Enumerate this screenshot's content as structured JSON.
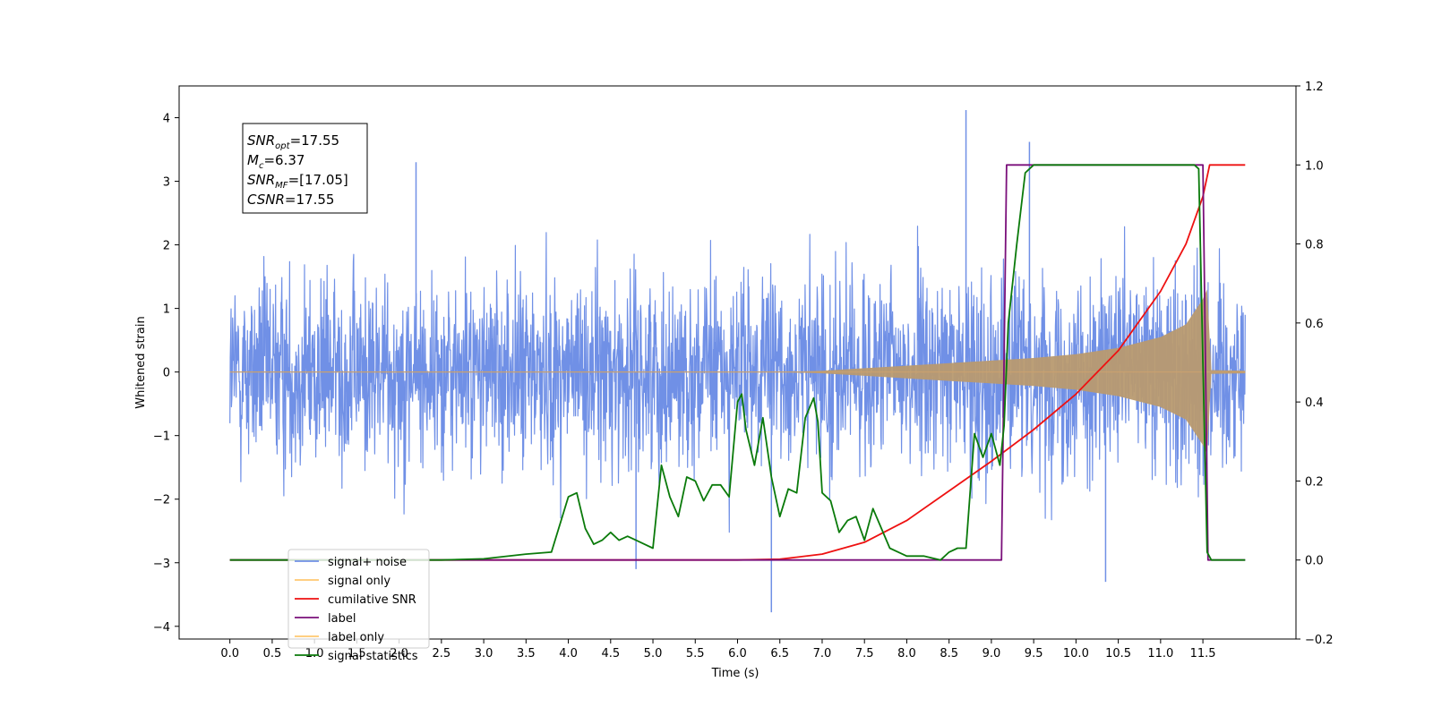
{
  "chart_data": {
    "type": "line",
    "xlabel": "Time (s)",
    "ylabel": "Whitened strain",
    "xlim": [
      -0.6,
      12.6
    ],
    "ylim": [
      -4.2,
      4.5
    ],
    "y2lim": [
      -0.2,
      1.2
    ],
    "x_ticks": [
      0.0,
      0.5,
      1.0,
      1.5,
      2.0,
      2.5,
      3.0,
      3.5,
      4.0,
      4.5,
      5.0,
      5.5,
      6.0,
      6.5,
      7.0,
      7.5,
      8.0,
      8.5,
      9.0,
      9.5,
      10.0,
      10.5,
      11.0,
      11.5
    ],
    "x_tick_labels": [
      "0.0",
      "0.5",
      "1.0",
      "1.5",
      "2.0",
      "2.5",
      "3.0",
      "3.5",
      "4.0",
      "4.5",
      "5.0",
      "5.5",
      "6.0",
      "6.5",
      "7.0",
      "7.5",
      "8.0",
      "8.5",
      "9.0",
      "9.5",
      "10.0",
      "10.5",
      "11.0",
      "11.5"
    ],
    "y_ticks": [
      -4,
      -3,
      -2,
      -1,
      0,
      1,
      2,
      3,
      4
    ],
    "y_tick_labels": [
      "−4",
      "−3",
      "−2",
      "−1",
      "0",
      "1",
      "2",
      "3",
      "4"
    ],
    "y2_ticks": [
      -0.2,
      0.0,
      0.2,
      0.4,
      0.6,
      0.8,
      1.0,
      1.2
    ],
    "y2_tick_labels": [
      "−0.2",
      "0.0",
      "0.2",
      "0.4",
      "0.6",
      "0.8",
      "1.0",
      "1.2"
    ],
    "annotation": {
      "lines": [
        {
          "base": "SNR",
          "sub": "opt",
          "rest": "=17.55"
        },
        {
          "base": "M",
          "sub": "c",
          "rest": "=6.37"
        },
        {
          "base": "SNR",
          "sub": "MF",
          "rest": "=[17.05]"
        },
        {
          "base": "CSNR",
          "sub": "",
          "rest": "=17.55"
        }
      ]
    },
    "legend": {
      "location": "lower-left",
      "entries": [
        {
          "label": "signal+ noise",
          "color": "#7090e6"
        },
        {
          "label": "signal only",
          "color": "#ffc870"
        },
        {
          "label": "cumilative SNR",
          "color": "#ee1111"
        },
        {
          "label": "label",
          "color": "#7a0f7a"
        },
        {
          "label": "label only",
          "color": "#ffc870"
        },
        {
          "label": "signal statistics",
          "color": "#0a7a0a"
        }
      ]
    },
    "series": [
      {
        "name": "signal+ noise",
        "axis": "left",
        "color": "#7090e6",
        "x_range": [
          0.0,
          12.0
        ],
        "typical_range": [
          -1.8,
          2.0
        ],
        "notable_peaks": [
          [
            8.7,
            4.12
          ],
          [
            6.4,
            -3.78
          ],
          [
            9.45,
            3.62
          ],
          [
            10.35,
            -3.3
          ],
          [
            4.8,
            -3.1
          ],
          [
            2.2,
            3.3
          ]
        ]
      },
      {
        "name": "signal only",
        "axis": "left",
        "color": "#c8a070",
        "x": [
          0.0,
          6.5,
          7.0,
          7.5,
          8.0,
          8.5,
          9.0,
          9.5,
          10.0,
          10.5,
          11.0,
          11.3,
          11.5,
          11.55,
          11.6,
          12.0
        ],
        "envelope": [
          0.0,
          0.0,
          0.02,
          0.06,
          0.1,
          0.14,
          0.18,
          0.22,
          0.28,
          0.38,
          0.55,
          0.75,
          1.15,
          1.3,
          0.03,
          0.02
        ]
      },
      {
        "name": "cumilative SNR",
        "axis": "right",
        "color": "#ee1111",
        "x": [
          0.0,
          6.0,
          6.5,
          7.0,
          7.5,
          8.0,
          8.5,
          9.0,
          9.5,
          10.0,
          10.5,
          11.0,
          11.3,
          11.5,
          11.58,
          12.0
        ],
        "y": [
          0.0,
          0.0,
          0.002,
          0.015,
          0.045,
          0.1,
          0.175,
          0.25,
          0.33,
          0.42,
          0.53,
          0.68,
          0.8,
          0.92,
          1.0,
          1.0
        ]
      },
      {
        "name": "label",
        "axis": "right",
        "color": "#7a0f7a",
        "x": [
          0.0,
          9.12,
          9.18,
          11.5,
          11.56,
          12.0
        ],
        "y": [
          0.0,
          0.0,
          1.0,
          1.0,
          0.0,
          0.0
        ]
      },
      {
        "name": "signal statistics",
        "axis": "right",
        "color": "#0a7a0a",
        "x": [
          0.0,
          2.5,
          3.0,
          3.5,
          3.8,
          4.0,
          4.1,
          4.2,
          4.3,
          4.4,
          4.5,
          4.6,
          4.7,
          4.8,
          4.9,
          5.0,
          5.1,
          5.2,
          5.3,
          5.4,
          5.5,
          5.6,
          5.7,
          5.8,
          5.9,
          6.0,
          6.05,
          6.1,
          6.2,
          6.3,
          6.4,
          6.5,
          6.6,
          6.7,
          6.8,
          6.9,
          6.95,
          7.0,
          7.1,
          7.2,
          7.3,
          7.4,
          7.5,
          7.6,
          7.7,
          7.8,
          7.9,
          8.0,
          8.2,
          8.4,
          8.5,
          8.6,
          8.7,
          8.8,
          8.9,
          9.0,
          9.1,
          9.15,
          9.2,
          9.3,
          9.4,
          9.5,
          9.7,
          10.0,
          11.4,
          11.45,
          11.5,
          11.55,
          11.6,
          12.0
        ],
        "y": [
          0.0,
          0.0,
          0.003,
          0.015,
          0.02,
          0.16,
          0.17,
          0.08,
          0.04,
          0.05,
          0.07,
          0.05,
          0.06,
          0.05,
          0.04,
          0.03,
          0.24,
          0.16,
          0.11,
          0.21,
          0.2,
          0.15,
          0.19,
          0.19,
          0.16,
          0.4,
          0.42,
          0.33,
          0.24,
          0.36,
          0.21,
          0.11,
          0.18,
          0.17,
          0.36,
          0.41,
          0.35,
          0.17,
          0.15,
          0.07,
          0.1,
          0.11,
          0.05,
          0.13,
          0.08,
          0.03,
          0.02,
          0.01,
          0.01,
          0.0,
          0.02,
          0.03,
          0.03,
          0.32,
          0.26,
          0.32,
          0.24,
          0.34,
          0.6,
          0.8,
          0.98,
          1.0,
          1.0,
          1.0,
          1.0,
          0.99,
          0.5,
          0.02,
          0.0,
          0.0
        ]
      }
    ]
  }
}
